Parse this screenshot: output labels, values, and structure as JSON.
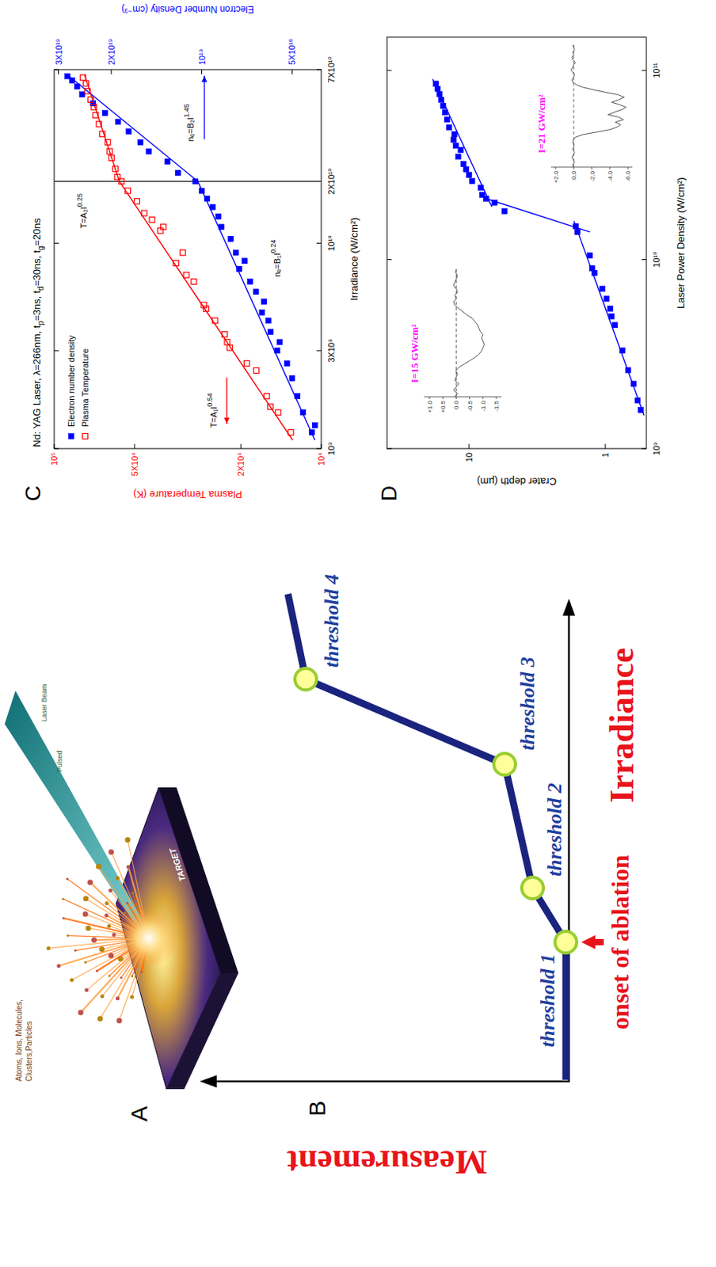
{
  "chart_data": [
    {
      "type": "scatter",
      "label": "C",
      "title": [
        {
          "text": "Nd: YAG Laser, λ=266nm, t"
        },
        {
          "sub": "p"
        },
        {
          "text": "=3ns, t"
        },
        {
          "sub": "d"
        },
        {
          "text": "=30ns, t"
        },
        {
          "sub": "g"
        },
        {
          "text": "=20ns"
        }
      ],
      "x_label": "Irradiance (W/cm²)",
      "y_label": "Plasma Temperature (K)",
      "y2_label": "Electron Number Density (cm⁻³)",
      "log": true,
      "legend": "upper left",
      "xlim": [
        1000000000.0,
        70000000000.0
      ],
      "xticks": [
        {
          "value": 1000000000.0,
          "label": "10⁹"
        },
        {
          "value": 3000000000.0,
          "label": "3X10⁹"
        },
        {
          "value": 10000000000.0,
          "label": "10¹⁰"
        },
        {
          "value": 20000000000.0,
          "label": "2X10¹⁰"
        },
        {
          "value": 70000000000.0,
          "label": "7X10¹⁰"
        }
      ],
      "ylim": [
        10000.0,
        100000.0
      ],
      "yticks": [
        {
          "value": 10000.0,
          "label": "10⁴"
        },
        {
          "value": 20000.0,
          "label": "2X10⁴"
        },
        {
          "value": 50000.0,
          "label": "5X10⁴"
        },
        {
          "value": 100000.0,
          "label": "10⁵"
        }
      ],
      "y2lim": [
        4e+18,
        3.1e+19
      ],
      "y2ticks": [
        {
          "value": 5e+18,
          "label": "5X10¹⁸"
        },
        {
          "value": 1e+19,
          "label": "10¹⁹"
        },
        {
          "value": 2e+19,
          "label": "2X10¹⁹"
        },
        {
          "value": 3e+19,
          "label": "3X10¹⁹"
        }
      ],
      "series": [
        {
          "name": "Electron number density",
          "color": "#0000ff",
          "marker": "square",
          "axis": "y2",
          "x": [
            1200000000.0,
            1300000000.0,
            1500000000.0,
            1800000000.0,
            2200000000.0,
            2600000000.0,
            3000000000.0,
            3300000000.0,
            3700000000.0,
            4200000000.0,
            4600000000.0,
            5200000000.0,
            5800000000.0,
            6500000000.0,
            7500000000.0,
            8200000000.0,
            9000000000.0,
            10500000000.0,
            12000000000.0,
            13500000000.0,
            15000000000.0,
            16500000000.0,
            18000000000.0,
            20000000000.0,
            22000000000.0,
            25000000000.0,
            28000000000.0,
            31000000000.0,
            35000000000.0,
            39000000000.0,
            43000000000.0,
            48000000000.0,
            53000000000.0,
            58000000000.0,
            62000000000.0,
            65000000000.0
          ],
          "values": [
            4.3e+18,
            4.2e+18,
            4.6e+18,
            4.8e+18,
            5e+18,
            5.2e+18,
            5.6e+18,
            5.5e+18,
            5.9e+18,
            6e+18,
            6.3e+18,
            6.2e+18,
            6.6e+18,
            6.9e+18,
            7.5e+18,
            7.2e+18,
            7.7e+18,
            8e+18,
            8.6e+18,
            8.8e+18,
            9.2e+18,
            9.6e+18,
            1e+19,
            1.05e+19,
            1.2e+19,
            1.3e+19,
            1.5e+19,
            1.6e+19,
            1.75e+19,
            1.9e+19,
            2.1e+19,
            2.3e+19,
            2.5e+19,
            2.6e+19,
            2.7e+19,
            2.8e+19
          ]
        },
        {
          "name": "Plasma Temperature",
          "color": "#ff0000",
          "marker": "open-square",
          "x": [
            1200000000.0,
            1500000000.0,
            1600000000.0,
            1800000000.0,
            2400000000.0,
            2600000000.0,
            3100000000.0,
            3300000000.0,
            3600000000.0,
            4200000000.0,
            4800000000.0,
            5000000000.0,
            6500000000.0,
            7000000000.0,
            8000000000.0,
            9000000000.0,
            11500000000.0,
            12000000000.0,
            13000000000.0,
            14000000000.0,
            16000000000.0,
            18000000000.0,
            20000000000.0,
            21000000000.0,
            23000000000.0,
            26000000000.0,
            28000000000.0,
            31000000000.0,
            34000000000.0,
            38000000000.0,
            42000000000.0,
            46000000000.0,
            50000000000.0,
            55000000000.0,
            60000000000.0,
            64000000000.0
          ],
          "values": [
            13000.0,
            14500.0,
            15500.0,
            16000.0,
            17500.0,
            19000.0,
            22000.0,
            22500.0,
            23000.0,
            25000.0,
            27000.0,
            27500.0,
            30000.0,
            32000.0,
            35000.0,
            33000.0,
            40000.0,
            39000.0,
            43000.0,
            46000.0,
            49000.0,
            53000.0,
            56000.0,
            58000.0,
            59000.0,
            61000.0,
            62000.0,
            63000.0,
            66000.0,
            68000.0,
            70000.0,
            71000.0,
            73000.0,
            75000.0,
            76000.0,
            78000.0
          ]
        }
      ],
      "fits": [
        {
          "label": "T=A₁I",
          "power": "0.54",
          "color": "#ff0000",
          "x": [
            1100000000.0,
            20000000000.0
          ],
          "values": [
            12800.0,
            57000.0
          ]
        },
        {
          "label": "T=A₂I",
          "power": "0.25",
          "color": "#ff0000",
          "x": [
            20000000000.0,
            66000000000.0
          ],
          "values": [
            57000.0,
            77000.0
          ]
        },
        {
          "label": "nₑ=B₁I",
          "power": "0.24",
          "color": "#0000ff",
          "axis": "y2",
          "x": [
            1100000000.0,
            20000000000.0
          ],
          "values": [
            4.2e+18,
            1.03e+19
          ]
        },
        {
          "label": "nₑ=B₂I",
          "power": "1.45",
          "color": "#0000ff",
          "axis": "y2",
          "x": [
            20000000000.0,
            66000000000.0
          ],
          "values": [
            1.03e+19,
            2.8e+19
          ]
        }
      ],
      "vlines": [
        20000000000.0
      ]
    },
    {
      "type": "scatter",
      "label": "D",
      "x_label": "Laser Power Density (W/cm²)",
      "y_label": "Crater depth (µm)",
      "log": true,
      "xlim": [
        1000000000.0,
        150000000000.0
      ],
      "xticks": [
        {
          "value": 1000000000.0,
          "label": "10⁹"
        },
        {
          "value": 10000000000.0,
          "label": "10¹⁰"
        },
        {
          "value": 100000000000.0,
          "label": "10¹¹"
        }
      ],
      "ylim": [
        0.5,
        40
      ],
      "yticks": [
        1,
        10
      ],
      "series": [
        {
          "color": "#0000ff",
          "marker": "square",
          "x": [
            1600000000.0,
            1800000000.0,
            2200000000.0,
            2600000000.0,
            3300000000.0,
            4500000000.0,
            5000000000.0,
            5500000000.0,
            6200000000.0,
            7000000000.0,
            8500000000.0,
            9000000000.0,
            10500000000.0,
            14000000000.0,
            15000000000.0,
            18000000000.0,
            20000000000.0,
            21000000000.0,
            22000000000.0,
            24000000000.0,
            26000000000.0,
            28000000000.0,
            30000000000.0,
            32000000000.0,
            35000000000.0,
            38000000000.0,
            40000000000.0,
            43000000000.0,
            46000000000.0,
            50000000000.0,
            55000000000.0,
            60000000000.0,
            65000000000.0,
            70000000000.0,
            75000000000.0,
            80000000000.0,
            85000000000.0
          ],
          "values": [
            0.55,
            0.58,
            0.62,
            0.68,
            0.75,
            0.85,
            0.9,
            0.92,
            0.98,
            1.05,
            1.2,
            1.25,
            1.3,
            1.6,
            1.65,
            5.5,
            6.5,
            7.5,
            8.0,
            8.2,
            9.5,
            10,
            10.5,
            11,
            12,
            11.5,
            12.5,
            13,
            12.8,
            14,
            14.5,
            15,
            15.5,
            16,
            16.5,
            17,
            17.5
          ]
        }
      ],
      "fits": [
        {
          "color": "#0000ff",
          "x": [
            1500000000.0,
            16000000000.0
          ],
          "values": [
            0.52,
            1.7
          ]
        },
        {
          "color": "#0000ff",
          "x": [
            14000000000.0,
            21000000000.0
          ],
          "values": [
            1.3,
            7.5
          ]
        },
        {
          "color": "#0000ff",
          "x": [
            19000000000.0,
            90000000000.0
          ],
          "values": [
            6.8,
            18.5
          ]
        }
      ],
      "insets": [
        {
          "label": "I=15 GW/cm²",
          "color": "#ff00ff",
          "ylim": [
            -1.7,
            1.2
          ],
          "baseline": 0,
          "yticks": [
            {
              "value": 1,
              "label": "+1.0"
            },
            {
              "value": 0.5,
              "label": "+0.5"
            },
            {
              "value": 0,
              "label": "0.0"
            },
            {
              "value": -0.5,
              "label": "-0.5"
            },
            {
              "value": -1,
              "label": "-1.0"
            },
            {
              "value": -1.5,
              "label": "-1.5"
            }
          ],
          "values": [
            0.05,
            -0.05,
            0.1,
            0,
            -0.1,
            0.05,
            0,
            -0.05,
            0.02,
            -0.1,
            -0.3,
            -0.5,
            -0.7,
            -0.85,
            -0.95,
            -1.0,
            -1.05,
            -1.0,
            -0.95,
            -1.0,
            -0.9,
            -0.85,
            -0.8,
            -0.7,
            -0.6,
            -0.4,
            -0.25,
            -0.1,
            0.05,
            0.1,
            0,
            0.05,
            -0.05,
            0,
            0.1,
            0.05,
            0,
            -0.05,
            0.02,
            0
          ]
        },
        {
          "label": "I=21 GW/cm²",
          "color": "#ff00ff",
          "ylim": [
            -6.5,
            2.5
          ],
          "baseline": 0,
          "yticks": [
            {
              "value": 2,
              "label": "+2.0"
            },
            {
              "value": 0,
              "label": "0.0"
            },
            {
              "value": -2,
              "label": "-2.0"
            },
            {
              "value": -4,
              "label": "-4.0"
            },
            {
              "value": -6,
              "label": "-6.0"
            }
          ],
          "values": [
            0,
            0.1,
            -0.1,
            0.05,
            0.2,
            0,
            -0.1,
            0.1,
            0,
            -0.05,
            0.1,
            0,
            -0.2,
            -1.0,
            -2.5,
            -4.0,
            -4.8,
            -5.2,
            -4.6,
            -5.5,
            -5.0,
            -3.8,
            -4.5,
            -5.3,
            -5.8,
            -5.1,
            -4.2,
            -5.0,
            -5.6,
            -4.9,
            -3.5,
            -2.2,
            -1.0,
            -0.3,
            0.1,
            0.2,
            0,
            -0.1,
            0.1,
            0.3,
            0.1,
            0,
            -0.2,
            0.1,
            0.2,
            0,
            0.1,
            -0.1,
            0,
            0.05
          ]
        }
      ]
    }
  ],
  "diagram": {
    "panel_a": {
      "label": "A",
      "texts": {
        "beam": "Laser Beam",
        "pulse": "Pulsed",
        "target": "TARGET",
        "ejecta": "Atoms, Ions, Molecules, Clusters,Particles"
      }
    },
    "panel_b": {
      "label": "B",
      "y_label": "Measurement",
      "x_label": "Irradiance",
      "onset": "onset of ablation",
      "thresholds": [
        "threshold 1",
        "threshold 2",
        "threshold 3",
        "threshold 4"
      ]
    }
  }
}
